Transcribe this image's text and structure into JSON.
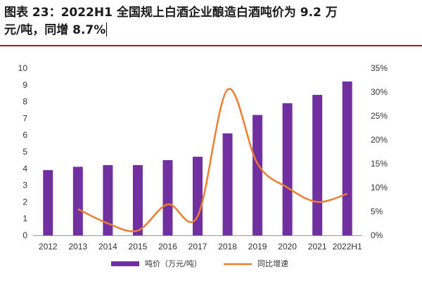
{
  "title": {
    "line1": "图表 23：2022H1 全国规上白酒企业酿造白酒吨价为 9.2 万",
    "line2": "元/吨，同增 8.7%"
  },
  "colors": {
    "bar": "#7030a0",
    "line": "#ed7d31",
    "title_rule": "#9e1a1a",
    "axis": "#999999"
  },
  "chart_data": {
    "type": "bar",
    "categories": [
      "2012",
      "2013",
      "2014",
      "2015",
      "2016",
      "2017",
      "2018",
      "2019",
      "2020",
      "2021",
      "2022H1"
    ],
    "series": [
      {
        "name": "吨价（万元/吨）",
        "type": "bar",
        "axis": "left",
        "values": [
          3.9,
          4.1,
          4.2,
          4.2,
          4.5,
          4.7,
          6.1,
          7.2,
          7.9,
          8.4,
          9.2
        ]
      },
      {
        "name": "同比增速",
        "type": "line",
        "axis": "right",
        "unit": "%",
        "values": [
          null,
          5.5,
          2.5,
          1.0,
          6.5,
          4.0,
          30.5,
          15.0,
          10.0,
          7.0,
          8.7
        ]
      }
    ],
    "y_left": {
      "min": 0,
      "max": 10,
      "ticks": [
        "0",
        "1",
        "2",
        "3",
        "4",
        "5",
        "6",
        "7",
        "8",
        "9",
        "10"
      ]
    },
    "y_right": {
      "min": 0,
      "max": 35,
      "ticks": [
        "0%",
        "5%",
        "10%",
        "15%",
        "20%",
        "25%",
        "30%",
        "35%"
      ]
    },
    "legend": [
      {
        "label": "吨价（万元/吨）",
        "kind": "bar"
      },
      {
        "label": "同比增速",
        "kind": "line"
      }
    ],
    "legend_position": "bottom",
    "grid": false
  }
}
